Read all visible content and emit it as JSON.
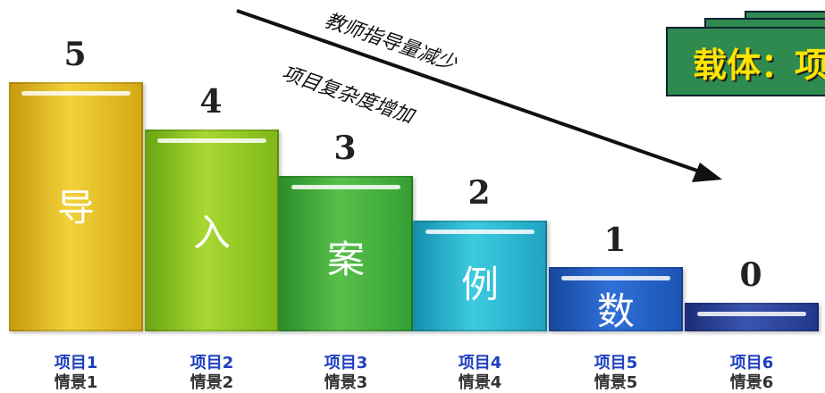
{
  "diagram": {
    "annotation_top": "教师指导量减少",
    "annotation_bottom": "项目复杂度增加",
    "carrier": "载体：项目",
    "bars": [
      {
        "value": "5",
        "char": "导",
        "project": "项目1",
        "scenario": "情景1",
        "color": "#e0b81c"
      },
      {
        "value": "4",
        "char": "入",
        "project": "项目2",
        "scenario": "情景2",
        "color": "#8cc21f"
      },
      {
        "value": "3",
        "char": "案",
        "project": "项目3",
        "scenario": "情景3",
        "color": "#3aa83a"
      },
      {
        "value": "2",
        "char": "例",
        "project": "项目4",
        "scenario": "情景4",
        "color": "#20b0c8"
      },
      {
        "value": "1",
        "char": "数",
        "project": "项目5",
        "scenario": "情景5",
        "color": "#1f5bbf"
      },
      {
        "value": "0",
        "char": "",
        "project": "项目6",
        "scenario": "情景6",
        "color": "#22388a"
      }
    ]
  }
}
